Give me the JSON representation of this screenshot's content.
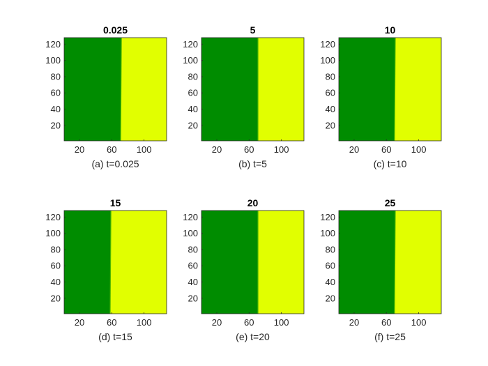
{
  "figure": {
    "colors": {
      "left_region": "#008c00",
      "right_region": "#e1ff00",
      "interface": "#4fb800",
      "axis": "#262626",
      "background": "#ffffff"
    }
  },
  "chart_data": [
    {
      "type": "heatmap",
      "title": "0.025",
      "caption": "(a) t=0.025",
      "interface_x": [
        71,
        72
      ],
      "xlim": [
        1,
        128
      ],
      "ylim": [
        1,
        128
      ],
      "xticks": [
        20,
        60,
        100
      ],
      "yticks": [
        20,
        40,
        60,
        80,
        100,
        120
      ],
      "regions": [
        "left",
        "right"
      ]
    },
    {
      "type": "heatmap",
      "title": "5",
      "caption": "(b) t=5",
      "interface_x": [
        71,
        71
      ],
      "xlim": [
        1,
        128
      ],
      "ylim": [
        1,
        128
      ],
      "xticks": [
        20,
        60,
        100
      ],
      "yticks": [
        20,
        40,
        60,
        80,
        100,
        120
      ],
      "regions": [
        "left",
        "right"
      ]
    },
    {
      "type": "heatmap",
      "title": "10",
      "caption": "(c) t=10",
      "interface_x": [
        70,
        71
      ],
      "xlim": [
        1,
        128
      ],
      "ylim": [
        1,
        128
      ],
      "xticks": [
        20,
        60,
        100
      ],
      "yticks": [
        20,
        40,
        60,
        80,
        100,
        120
      ],
      "regions": [
        "left",
        "right"
      ]
    },
    {
      "type": "heatmap",
      "title": "15",
      "caption": "(d) t=15",
      "interface_x": [
        58,
        59
      ],
      "xlim": [
        1,
        128
      ],
      "ylim": [
        1,
        128
      ],
      "xticks": [
        20,
        60,
        100
      ],
      "yticks": [
        20,
        40,
        60,
        80,
        100,
        120
      ],
      "regions": [
        "left",
        "right"
      ]
    },
    {
      "type": "heatmap",
      "title": "20",
      "caption": "(e) t=20",
      "interface_x": [
        71,
        71
      ],
      "xlim": [
        1,
        128
      ],
      "ylim": [
        1,
        128
      ],
      "xticks": [
        20,
        60,
        100
      ],
      "yticks": [
        20,
        40,
        60,
        80,
        100,
        120
      ],
      "regions": [
        "left",
        "right"
      ]
    },
    {
      "type": "heatmap",
      "title": "25",
      "caption": "(f) t=25",
      "interface_x": [
        70,
        71
      ],
      "xlim": [
        1,
        128
      ],
      "ylim": [
        1,
        128
      ],
      "xticks": [
        20,
        60,
        100
      ],
      "yticks": [
        20,
        40,
        60,
        80,
        100,
        120
      ],
      "regions": [
        "left",
        "right"
      ]
    }
  ]
}
